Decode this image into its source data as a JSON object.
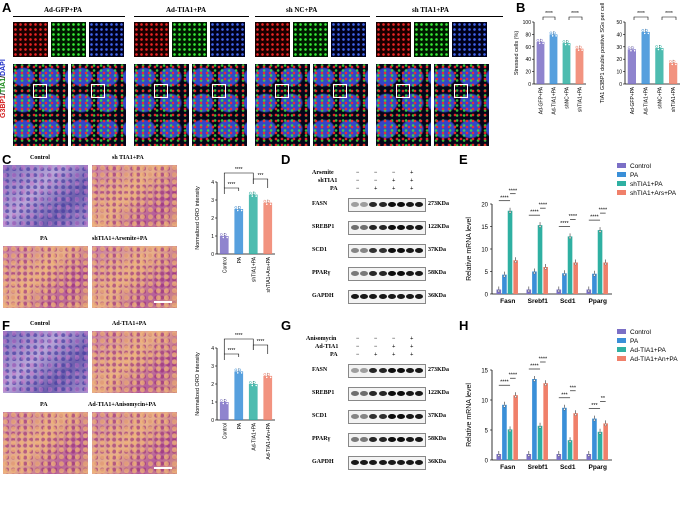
{
  "panels": {
    "A": {
      "label": "A",
      "headers": [
        "Ad-GFP+PA",
        "Ad-TIA1+PA",
        "sh NC+PA",
        "sh TIA1+PA"
      ],
      "ylabel_parts": [
        "G3BP1",
        "/",
        "TIA1",
        "/",
        "DAPI"
      ]
    },
    "B": {
      "label": "B"
    },
    "C": {
      "label": "C",
      "images": [
        "Control",
        "sh TIA1+PA",
        "PA",
        "shTIA1+Arsenite+PA"
      ]
    },
    "D": {
      "label": "D",
      "conditions": [
        {
          "name": "Arsenite",
          "signs": [
            "−",
            "−",
            "−",
            "+"
          ]
        },
        {
          "name": "shTIA1",
          "signs": [
            "−",
            "−",
            "+",
            "+"
          ]
        },
        {
          "name": "PA",
          "signs": [
            "−",
            "+",
            "+",
            "+"
          ]
        }
      ],
      "blots": [
        {
          "name": "FASN",
          "size": "273KDa"
        },
        {
          "name": "SREBP1",
          "size": "122KDa"
        },
        {
          "name": "SCD1",
          "size": "37KDa"
        },
        {
          "name": "PPARγ",
          "size": "58KDa"
        },
        {
          "name": "GAPDH",
          "size": "36KDa"
        }
      ]
    },
    "E": {
      "label": "E"
    },
    "F": {
      "label": "F",
      "images": [
        "Control",
        "Ad-TIA1+PA",
        "PA",
        "Ad-TIA1+Anisomycin+PA"
      ]
    },
    "G": {
      "label": "G",
      "conditions": [
        {
          "name": "Anisomycin",
          "signs": [
            "−",
            "−",
            "−",
            "+"
          ]
        },
        {
          "name": "Ad-TIA1",
          "signs": [
            "−",
            "−",
            "+",
            "+"
          ]
        },
        {
          "name": "PA",
          "signs": [
            "−",
            "+",
            "+",
            "+"
          ]
        }
      ],
      "blots": [
        {
          "name": "FASN",
          "size": "273KDa"
        },
        {
          "name": "SREBP1",
          "size": "122KDa"
        },
        {
          "name": "SCD1",
          "size": "37KDa"
        },
        {
          "name": "PPARγ",
          "size": "58KDa"
        },
        {
          "name": "GAPDH",
          "size": "36KDa"
        }
      ]
    },
    "H": {
      "label": "H"
    }
  },
  "colors": {
    "control": "#7b6fc6",
    "pa": "#3a8fd8",
    "treat": "#2fb0a2",
    "rescue": "#f0806a"
  },
  "chart_data": [
    {
      "id": "B1",
      "type": "bar",
      "ylabel": "Stressed cells (%)",
      "categories": [
        "Ad-GFP+PA",
        "Ad-TIA1+PA",
        "shNC+PA",
        "shTIA1+PA"
      ],
      "values": [
        68,
        80,
        66,
        57
      ],
      "ylim": [
        0,
        100
      ],
      "yticks": [
        0,
        20,
        40,
        60,
        80,
        100
      ],
      "significance": [
        "****",
        "****"
      ]
    },
    {
      "id": "B2",
      "type": "bar",
      "ylabel": "TIA1 G3BP1 double positive SGs per cell",
      "categories": [
        "Ad-GFP+PA",
        "Ad-TIA1+PA",
        "shNC+PA",
        "shTIA1+PA"
      ],
      "values": [
        28,
        42,
        29,
        17
      ],
      "ylim": [
        0,
        50
      ],
      "yticks": [
        0,
        10,
        20,
        30,
        40,
        50
      ],
      "significance": [
        "****",
        "****"
      ]
    },
    {
      "id": "C",
      "type": "bar",
      "ylabel": "Normalized ORO intensity",
      "categories": [
        "Control",
        "PA",
        "shTIA1+PA",
        "shTIA1+Ars+PA"
      ],
      "values": [
        1.0,
        2.5,
        3.3,
        2.85
      ],
      "ylim": [
        0,
        4
      ],
      "yticks": [
        0,
        1,
        2,
        3,
        4
      ],
      "significance": [
        "****",
        "****",
        "***"
      ]
    },
    {
      "id": "E",
      "type": "bar",
      "ylabel": "Relative mRNA level",
      "categories": [
        "Fasn",
        "Srebf1",
        "Scd1",
        "Pparg"
      ],
      "series": [
        {
          "name": "Control",
          "values": [
            1.0,
            1.0,
            1.0,
            1.0
          ]
        },
        {
          "name": "PA",
          "values": [
            4.3,
            5.0,
            4.6,
            4.5
          ]
        },
        {
          "name": "shTIA1+PA",
          "values": [
            18.5,
            15.3,
            12.8,
            14.2
          ]
        },
        {
          "name": "shTIA1+Ars+PA",
          "values": [
            7.5,
            6.0,
            7.0,
            7.0
          ]
        }
      ],
      "ylim": [
        0,
        20
      ],
      "yticks": [
        0,
        5,
        10,
        15,
        20
      ],
      "significance": [
        "****",
        "****",
        "****",
        "****",
        "****",
        "****",
        "****",
        "****"
      ]
    },
    {
      "id": "F",
      "type": "bar",
      "ylabel": "Normalized ORO intensity",
      "categories": [
        "Control",
        "PA",
        "Ad-TIA1+PA",
        "Ad-TIA1+An+PA"
      ],
      "values": [
        1.0,
        2.7,
        2.0,
        2.45
      ],
      "ylim": [
        0,
        4
      ],
      "yticks": [
        0,
        1,
        2,
        3,
        4
      ],
      "significance": [
        "****",
        "****",
        "****"
      ]
    },
    {
      "id": "H",
      "type": "bar",
      "ylabel": "Relative mRNA level",
      "categories": [
        "Fasn",
        "Srebf1",
        "Scd1",
        "Pparg"
      ],
      "series": [
        {
          "name": "Control",
          "values": [
            1.0,
            1.0,
            1.0,
            1.0
          ]
        },
        {
          "name": "PA",
          "values": [
            9.2,
            13.5,
            8.7,
            6.9
          ]
        },
        {
          "name": "Ad-TIA1+PA",
          "values": [
            5.1,
            5.7,
            3.3,
            4.7
          ]
        },
        {
          "name": "Ad-TIA1+An+PA",
          "values": [
            10.8,
            12.8,
            7.8,
            6.1
          ]
        }
      ],
      "ylim": [
        0,
        15
      ],
      "yticks": [
        0,
        5,
        10,
        15
      ],
      "significance": [
        "****",
        "****",
        "****",
        "****",
        "***",
        "***",
        "***",
        "**"
      ]
    }
  ]
}
